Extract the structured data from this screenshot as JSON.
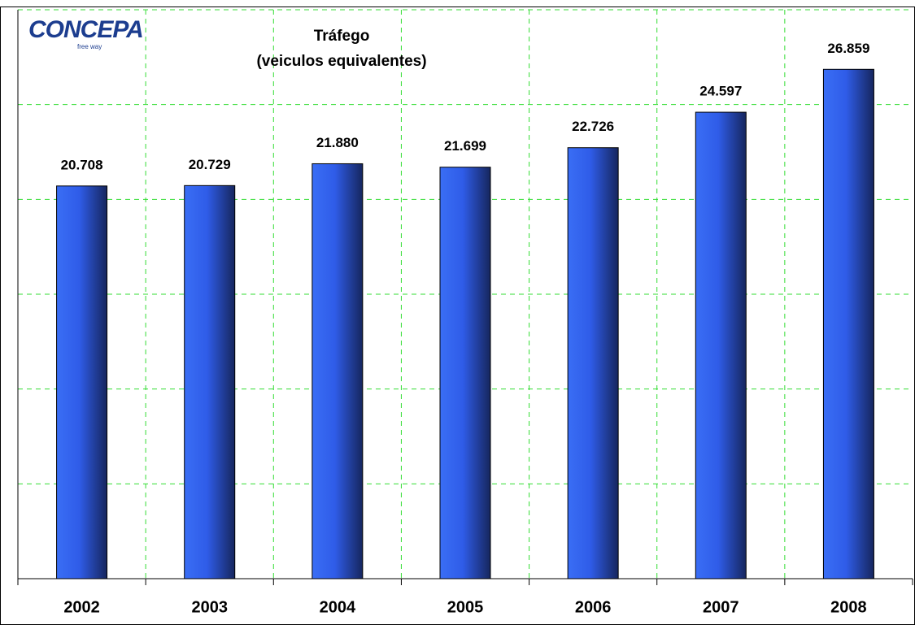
{
  "chart_data": {
    "type": "bar",
    "title": "Tráfego",
    "subtitle": "(veiculos equivalentes)",
    "logo": {
      "name": "CONCEPA",
      "tagline": "free way"
    },
    "categories": [
      "2002",
      "2003",
      "2004",
      "2005",
      "2006",
      "2007",
      "2008"
    ],
    "values": [
      20708,
      20729,
      21880,
      21699,
      22726,
      24597,
      26859
    ],
    "value_labels": [
      "20.708",
      "20.729",
      "21.880",
      "21.699",
      "22.726",
      "24.597",
      "26.859"
    ],
    "color": "#2f5ce8",
    "ylim": [
      0,
      30000
    ],
    "yticks": [
      0,
      5000,
      10000,
      15000,
      20000,
      25000,
      30000
    ],
    "grid": true
  }
}
